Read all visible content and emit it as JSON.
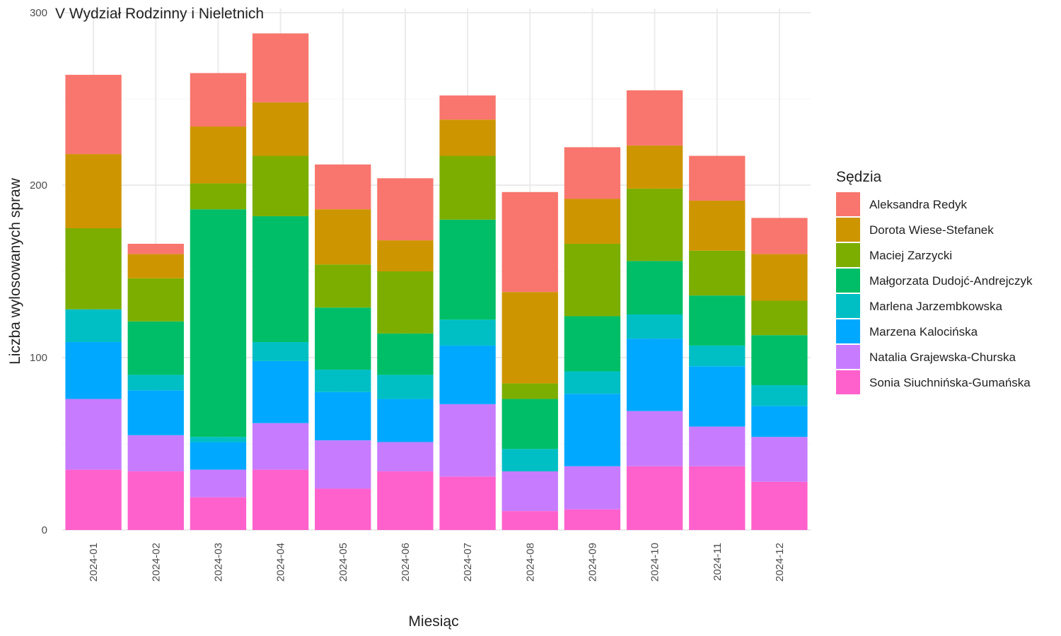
{
  "chart_data": {
    "type": "bar",
    "stacked": true,
    "title": "V Wydział Rodzinny i Nieletnich",
    "xlabel": "Miesiąc",
    "ylabel": "Liczba wylosowanych spraw",
    "ylim": [
      0,
      300
    ],
    "yticks": [
      0,
      100,
      200,
      300
    ],
    "grid": true,
    "legend_title": "Sędzia",
    "legend_position": "right",
    "categories": [
      "2024-01",
      "2024-02",
      "2024-03",
      "2024-04",
      "2024-05",
      "2024-06",
      "2024-07",
      "2024-08",
      "2024-09",
      "2024-10",
      "2024-11",
      "2024-12"
    ],
    "series": [
      {
        "name": "Aleksandra Redyk",
        "color": "#F8766D",
        "values": [
          46,
          6,
          31,
          40,
          26,
          36,
          14,
          58,
          30,
          32,
          26,
          21
        ]
      },
      {
        "name": "Dorota Wiese-Stefanek",
        "color": "#CD9600",
        "values": [
          43,
          14,
          33,
          31,
          32,
          18,
          21,
          53,
          26,
          25,
          29,
          27
        ]
      },
      {
        "name": "Maciej Zarzycki",
        "color": "#7CAE00",
        "values": [
          47,
          25,
          15,
          35,
          25,
          36,
          37,
          9,
          42,
          42,
          26,
          20
        ]
      },
      {
        "name": "Małgorzata Dudojć-Andrejczyk",
        "color": "#00BE67",
        "values": [
          0,
          31,
          132,
          73,
          36,
          24,
          58,
          29,
          32,
          31,
          29,
          29
        ]
      },
      {
        "name": "Marlena Jarzembkowska",
        "color": "#00BFC4",
        "values": [
          19,
          9,
          3,
          11,
          13,
          14,
          15,
          13,
          13,
          14,
          12,
          12
        ]
      },
      {
        "name": "Marzena Kalocińska",
        "color": "#00A9FF",
        "values": [
          33,
          26,
          16,
          36,
          28,
          25,
          34,
          0,
          42,
          42,
          35,
          18
        ]
      },
      {
        "name": "Natalia Grajewska-Churska",
        "color": "#C77CFF",
        "values": [
          41,
          21,
          16,
          27,
          28,
          17,
          42,
          23,
          25,
          32,
          23,
          26
        ]
      },
      {
        "name": "Sonia Siuchnińska-Gumańska",
        "color": "#FF61CC",
        "values": [
          35,
          34,
          19,
          35,
          24,
          34,
          31,
          11,
          12,
          37,
          37,
          28
        ]
      }
    ]
  }
}
